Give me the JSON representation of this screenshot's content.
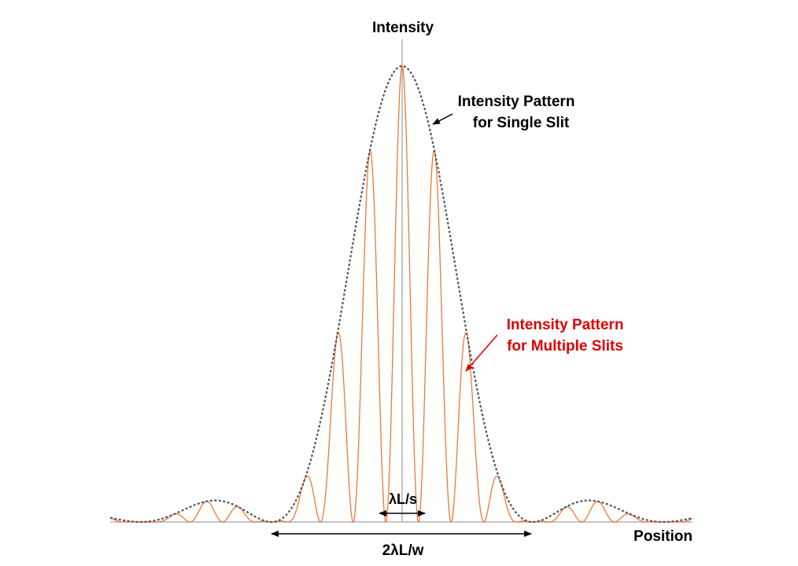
{
  "labels": {
    "y_axis": "Intensity",
    "x_axis": "Position",
    "single_line1": "Intensity Pattern",
    "single_line2": "for Single Slit",
    "multi_line1": "Intensity Pattern",
    "multi_line2": "for Multiple Slits",
    "spacing": "λL/s",
    "width": "2λL/w"
  },
  "colors": {
    "multi_slit_curve": "#f07838",
    "single_slit_curve": "#555555",
    "axis": "#b0b0b0",
    "multi_label": "#e00000",
    "text": "#000000"
  },
  "diagram": {
    "single_slit_envelope": "sinc-squared",
    "slit_ratio_w_over_s": 0.25,
    "multi_slit_count": 2
  }
}
